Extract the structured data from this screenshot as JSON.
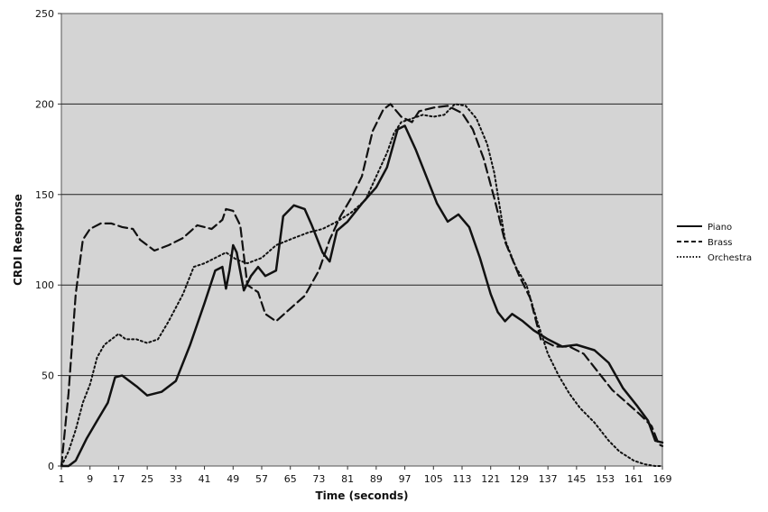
{
  "chart_data": {
    "type": "line",
    "title": "",
    "xlabel": "Time (seconds)",
    "ylabel": "CRDI Response",
    "xlim": [
      1,
      169
    ],
    "ylim": [
      0,
      250
    ],
    "x_ticks": [
      1,
      9,
      17,
      25,
      33,
      41,
      49,
      57,
      65,
      73,
      81,
      89,
      97,
      105,
      113,
      121,
      129,
      137,
      145,
      153,
      161,
      169
    ],
    "y_ticks": [
      0,
      50,
      100,
      150,
      200,
      250
    ],
    "grid": "horizontal",
    "legend_position": "right",
    "plot_background": "#d4d4d4",
    "series": [
      {
        "name": "Piano",
        "style": "solid",
        "points": [
          [
            1,
            0
          ],
          [
            3,
            0
          ],
          [
            5,
            3
          ],
          [
            8,
            15
          ],
          [
            11,
            25
          ],
          [
            14,
            35
          ],
          [
            16,
            49
          ],
          [
            18,
            50
          ],
          [
            22,
            44
          ],
          [
            25,
            39
          ],
          [
            29,
            41
          ],
          [
            33,
            47
          ],
          [
            37,
            67
          ],
          [
            41,
            90
          ],
          [
            44,
            108
          ],
          [
            46,
            110
          ],
          [
            47,
            98
          ],
          [
            48,
            108
          ],
          [
            49,
            122
          ],
          [
            50,
            118
          ],
          [
            52,
            97
          ],
          [
            54,
            105
          ],
          [
            56,
            110
          ],
          [
            58,
            105
          ],
          [
            61,
            108
          ],
          [
            63,
            138
          ],
          [
            66,
            144
          ],
          [
            69,
            142
          ],
          [
            71,
            133
          ],
          [
            74,
            118
          ],
          [
            76,
            113
          ],
          [
            78,
            130
          ],
          [
            81,
            135
          ],
          [
            85,
            145
          ],
          [
            89,
            154
          ],
          [
            92,
            165
          ],
          [
            95,
            186
          ],
          [
            97,
            188
          ],
          [
            100,
            175
          ],
          [
            103,
            160
          ],
          [
            106,
            145
          ],
          [
            109,
            135
          ],
          [
            112,
            139
          ],
          [
            115,
            132
          ],
          [
            118,
            115
          ],
          [
            121,
            95
          ],
          [
            123,
            85
          ],
          [
            125,
            80
          ],
          [
            127,
            84
          ],
          [
            130,
            80
          ],
          [
            133,
            75
          ],
          [
            137,
            70
          ],
          [
            141,
            66
          ],
          [
            145,
            67
          ],
          [
            150,
            64
          ],
          [
            154,
            57
          ],
          [
            158,
            43
          ],
          [
            162,
            33
          ],
          [
            165,
            25
          ],
          [
            167,
            14
          ],
          [
            169,
            13
          ]
        ]
      },
      {
        "name": "Brass",
        "style": "dashed",
        "points": [
          [
            1,
            0
          ],
          [
            3,
            40
          ],
          [
            5,
            95
          ],
          [
            7,
            125
          ],
          [
            9,
            131
          ],
          [
            12,
            134
          ],
          [
            15,
            134
          ],
          [
            18,
            132
          ],
          [
            21,
            131
          ],
          [
            23,
            125
          ],
          [
            27,
            119
          ],
          [
            31,
            122
          ],
          [
            35,
            126
          ],
          [
            39,
            133
          ],
          [
            43,
            131
          ],
          [
            46,
            136
          ],
          [
            47,
            142
          ],
          [
            49,
            141
          ],
          [
            51,
            133
          ],
          [
            53,
            100
          ],
          [
            56,
            96
          ],
          [
            58,
            84
          ],
          [
            61,
            80
          ],
          [
            65,
            87
          ],
          [
            69,
            94
          ],
          [
            73,
            108
          ],
          [
            76,
            125
          ],
          [
            79,
            138
          ],
          [
            82,
            148
          ],
          [
            85,
            160
          ],
          [
            88,
            185
          ],
          [
            91,
            197
          ],
          [
            93,
            200
          ],
          [
            96,
            193
          ],
          [
            99,
            190
          ],
          [
            101,
            196
          ],
          [
            105,
            198
          ],
          [
            109,
            199
          ],
          [
            113,
            195
          ],
          [
            116,
            186
          ],
          [
            119,
            170
          ],
          [
            122,
            148
          ],
          [
            125,
            124
          ],
          [
            129,
            105
          ],
          [
            132,
            93
          ],
          [
            135,
            70
          ],
          [
            139,
            66
          ],
          [
            143,
            66
          ],
          [
            147,
            62
          ],
          [
            151,
            52
          ],
          [
            155,
            42
          ],
          [
            159,
            35
          ],
          [
            163,
            28
          ],
          [
            166,
            22
          ],
          [
            168,
            12
          ],
          [
            169,
            11
          ]
        ]
      },
      {
        "name": "Orchestra",
        "style": "dotted",
        "points": [
          [
            1,
            0
          ],
          [
            3,
            8
          ],
          [
            5,
            20
          ],
          [
            7,
            35
          ],
          [
            9,
            45
          ],
          [
            11,
            60
          ],
          [
            13,
            67
          ],
          [
            17,
            73
          ],
          [
            19,
            70
          ],
          [
            22,
            70
          ],
          [
            25,
            68
          ],
          [
            28,
            70
          ],
          [
            31,
            80
          ],
          [
            35,
            95
          ],
          [
            38,
            110
          ],
          [
            41,
            112
          ],
          [
            44,
            115
          ],
          [
            47,
            118
          ],
          [
            50,
            114
          ],
          [
            53,
            112
          ],
          [
            57,
            115
          ],
          [
            61,
            122
          ],
          [
            66,
            126
          ],
          [
            70,
            129
          ],
          [
            74,
            131
          ],
          [
            78,
            135
          ],
          [
            82,
            140
          ],
          [
            86,
            147
          ],
          [
            89,
            160
          ],
          [
            92,
            173
          ],
          [
            94,
            184
          ],
          [
            96,
            190
          ],
          [
            99,
            192
          ],
          [
            102,
            194
          ],
          [
            105,
            193
          ],
          [
            108,
            194
          ],
          [
            111,
            200
          ],
          [
            114,
            199
          ],
          [
            117,
            192
          ],
          [
            120,
            178
          ],
          [
            122,
            162
          ],
          [
            125,
            125
          ],
          [
            128,
            110
          ],
          [
            131,
            100
          ],
          [
            134,
            80
          ],
          [
            137,
            62
          ],
          [
            140,
            50
          ],
          [
            143,
            40
          ],
          [
            146,
            32
          ],
          [
            150,
            24
          ],
          [
            154,
            14
          ],
          [
            157,
            8
          ],
          [
            161,
            3
          ],
          [
            164,
            1
          ],
          [
            167,
            0
          ],
          [
            169,
            0
          ]
        ]
      }
    ]
  }
}
